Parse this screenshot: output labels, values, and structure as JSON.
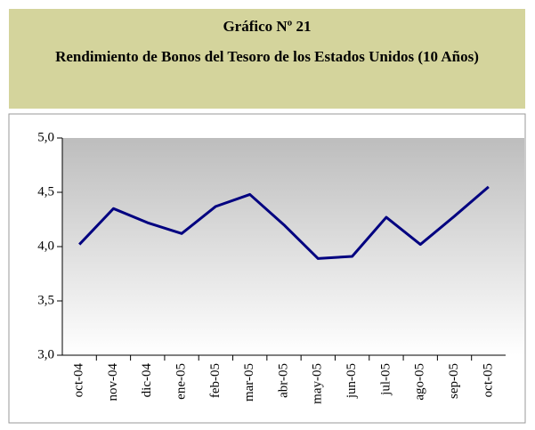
{
  "chart_data": {
    "type": "line",
    "title": "Gráfico Nº 21",
    "subtitle": "Rendimiento de Bonos del Tesoro de los Estados Unidos (10 Años)",
    "categories": [
      "oct-04",
      "nov-04",
      "dic-04",
      "ene-05",
      "feb-05",
      "mar-05",
      "abr-05",
      "may-05",
      "jun-05",
      "jul-05",
      "ago-05",
      "sep-05",
      "oct-05"
    ],
    "values": [
      4.02,
      4.35,
      4.22,
      4.12,
      4.37,
      4.48,
      4.2,
      3.89,
      3.91,
      4.27,
      4.02,
      4.28,
      4.55
    ],
    "color": "#000080",
    "ylim": [
      3,
      5
    ],
    "yticks": [
      {
        "value": 3,
        "label": "3,0"
      },
      {
        "value": 3.5,
        "label": "3,5"
      },
      {
        "value": 4,
        "label": "4,0"
      },
      {
        "value": 4.5,
        "label": "4,5"
      },
      {
        "value": 5,
        "label": "5,0"
      }
    ],
    "grid": false
  }
}
